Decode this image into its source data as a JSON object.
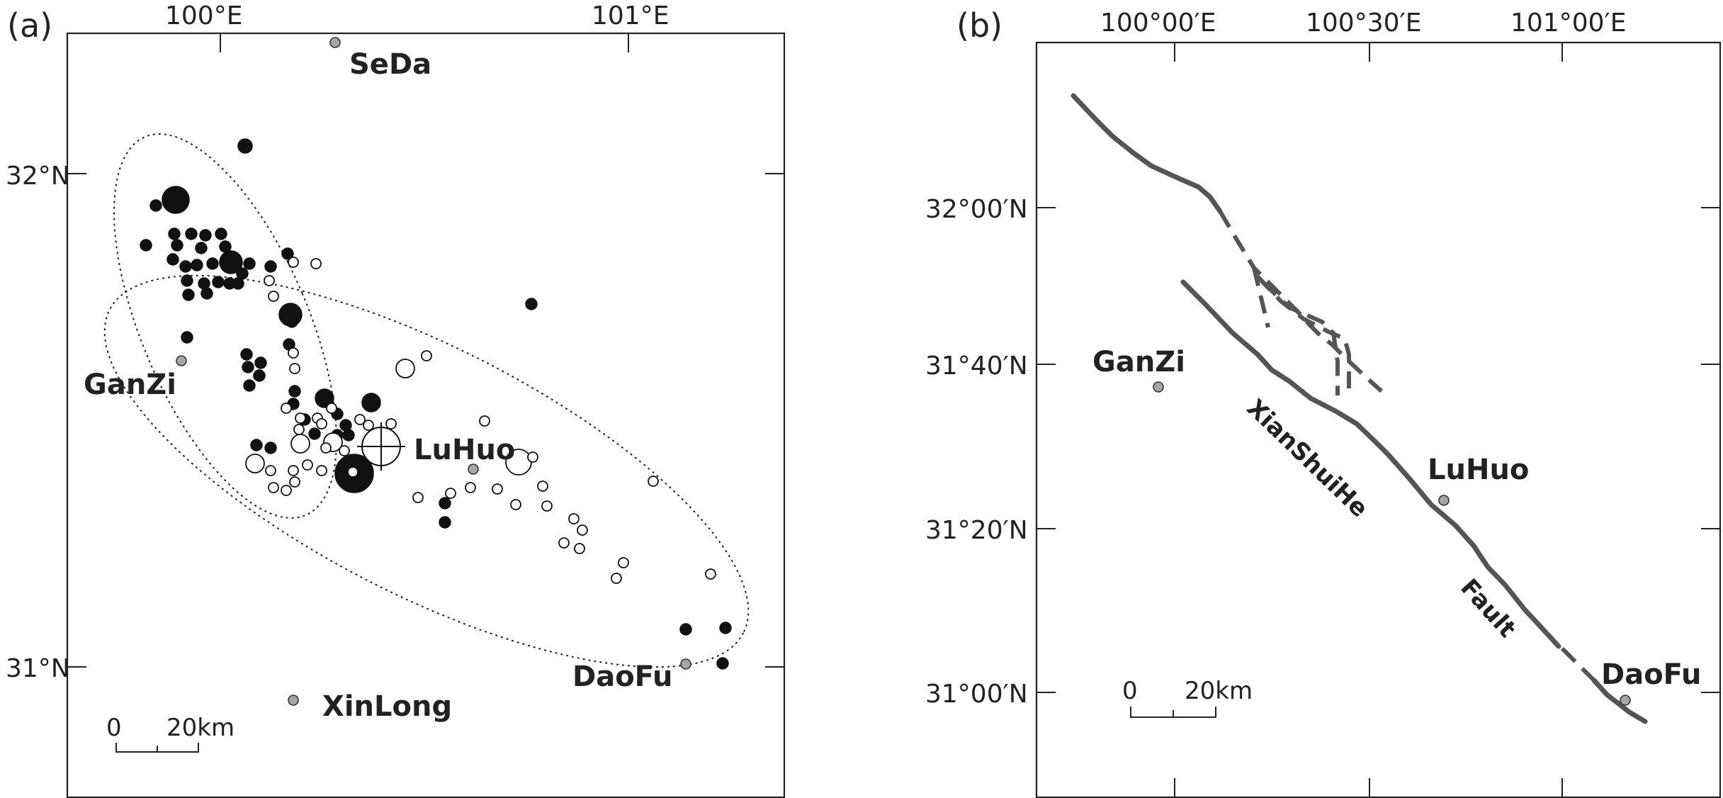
{
  "panel_a": {
    "label": "(a)",
    "lon_labels": [
      "100°E",
      "101°E"
    ],
    "lat_labels": [
      "32°N",
      "31°N"
    ],
    "places": {
      "seda": "SeDa",
      "ganzi": "GanZi",
      "luhuo": "LuHuo",
      "daofu": "DaoFu",
      "xinlong": "XinLong"
    },
    "scale": {
      "zero": "0",
      "distance": "20km"
    }
  },
  "panel_b": {
    "label": "(b)",
    "lon_labels": [
      "100°00′E",
      "100°30′E",
      "101°00′E"
    ],
    "lat_labels": [
      "32°00′N",
      "31°40′N",
      "31°20′N",
      "31°00′N"
    ],
    "places": {
      "ganzi": "GanZi",
      "luhuo": "LuHuo",
      "daofu": "DaoFu"
    },
    "fault_words": [
      "XianShuiHe",
      "Fault"
    ],
    "scale": {
      "zero": "0",
      "distance": "20km"
    }
  },
  "colors": {
    "filled_event": "#111111",
    "open_event": "#ffffff",
    "town_marker": "#a6a6a6",
    "fault_line": "#555555"
  }
}
